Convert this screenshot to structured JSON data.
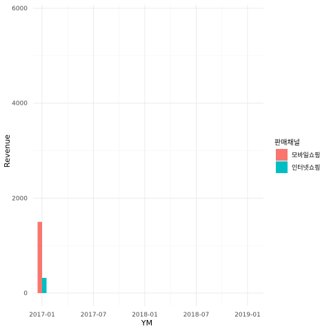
{
  "chart_data": {
    "type": "bar",
    "xlabel": "YM",
    "ylabel": "Revenue",
    "ylim": [
      0,
      6000
    ],
    "y_ticks": [
      0,
      2000,
      4000,
      6000
    ],
    "x_tick_labels": [
      "2017-01",
      "2017-07",
      "2018-01",
      "2018-07",
      "2019-01"
    ],
    "x_range_months": [
      "2017-01",
      "2019-01"
    ],
    "grid": true,
    "legend_position": "right",
    "legend": {
      "title": "판매채널",
      "entries": [
        "모바일쇼핑",
        "인터넷쇼핑"
      ]
    },
    "categories": [
      "2017-01"
    ],
    "series": [
      {
        "name": "모바일쇼핑",
        "color": "#F8766D",
        "values": [
          1500
        ]
      },
      {
        "name": "인터넷쇼핑",
        "color": "#00BFC4",
        "values": [
          320
        ]
      }
    ]
  }
}
